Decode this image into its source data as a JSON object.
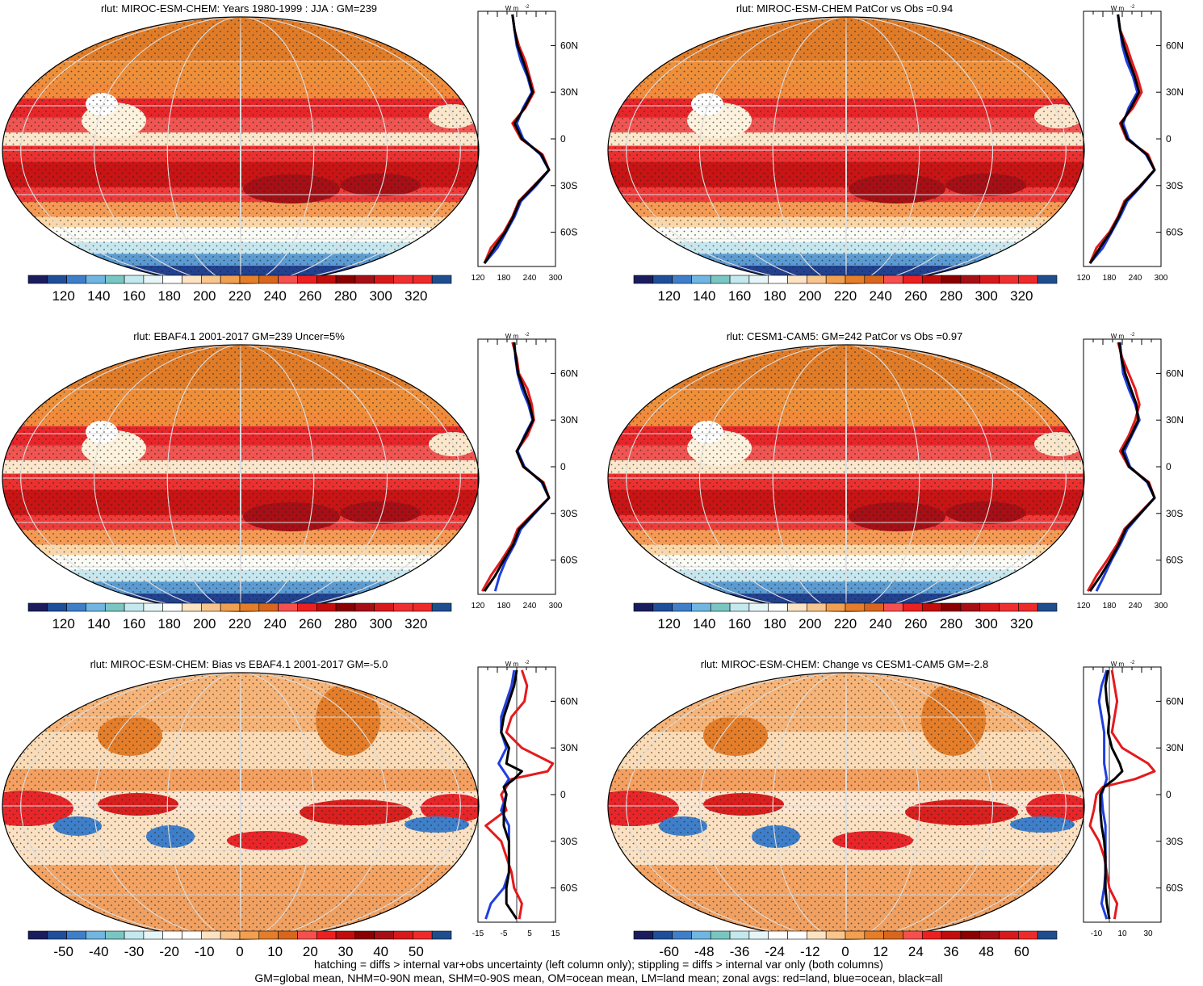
{
  "footer": {
    "line1": "hatching = diffs > internal var+obs uncertainty (left column only); stippling = diffs > internal var only (both columns)",
    "line2": "GM=global mean, NHM=0-90N mean, SHM=0-90S mean, OM=ocean mean, LM=land mean; zonal avgs: red=land, blue=ocean, black=all"
  },
  "profile_unit": "W m",
  "profile_unit_exp": "-2",
  "lat_labels": [
    "60N",
    "30N",
    "0",
    "30S",
    "60S"
  ],
  "chart_data": [
    {
      "type": "heatmap",
      "title": "rlut: MIROC-ESM-CHEM: Years 1980-1999 : JJA : GM=239",
      "colorbar_ticks": [
        "120",
        "140",
        "160",
        "180",
        "200",
        "220",
        "240",
        "260",
        "280",
        "300",
        "320"
      ],
      "colorbar_colors": [
        "#1b1c5e",
        "#1f4e9a",
        "#3f7fc9",
        "#71b6e3",
        "#79c6c2",
        "#c3e8ee",
        "#e6f5f7",
        "#ffffff",
        "#fbe3c4",
        "#f7c58e",
        "#f0a050",
        "#e47e2a",
        "#d9661e",
        "#f5504f",
        "#ec2020",
        "#c20d0d",
        "#8b0000",
        "#a50f15",
        "#d7191c",
        "#f03030",
        "#ef2a2a",
        "#1f4e8f"
      ],
      "profile": {
        "xticks": [
          "120",
          "180",
          "240",
          "300"
        ],
        "xlim": [
          120,
          300
        ],
        "lat": [
          80,
          70,
          60,
          50,
          40,
          30,
          20,
          10,
          0,
          -10,
          -20,
          -30,
          -40,
          -50,
          -60,
          -70,
          -80
        ],
        "land": [
          200,
          205,
          215,
          230,
          240,
          250,
          230,
          200,
          220,
          270,
          285,
          250,
          215,
          200,
          180,
          150,
          135
        ],
        "ocean": [
          200,
          205,
          210,
          220,
          235,
          245,
          225,
          210,
          225,
          265,
          285,
          255,
          220,
          205,
          185,
          165,
          135
        ],
        "all": [
          200,
          205,
          212,
          225,
          237,
          247,
          228,
          205,
          222,
          267,
          285,
          252,
          217,
          202,
          183,
          158,
          135
        ]
      }
    },
    {
      "type": "heatmap",
      "title": "rlut: MIROC-ESM-CHEM PatCor vs Obs =0.94",
      "colorbar_ticks": [
        "120",
        "140",
        "160",
        "180",
        "200",
        "220",
        "240",
        "260",
        "280",
        "300",
        "320"
      ],
      "colorbar_colors": [
        "#1b1c5e",
        "#1f4e9a",
        "#3f7fc9",
        "#71b6e3",
        "#79c6c2",
        "#c3e8ee",
        "#e6f5f7",
        "#ffffff",
        "#fbe3c4",
        "#f7c58e",
        "#f0a050",
        "#e47e2a",
        "#d9661e",
        "#f5504f",
        "#ec2020",
        "#c20d0d",
        "#8b0000",
        "#a50f15",
        "#d7191c",
        "#f03030",
        "#ef2a2a",
        "#1f4e8f"
      ],
      "profile": {
        "xticks": [
          "120",
          "180",
          "240",
          "300"
        ],
        "xlim": [
          120,
          300
        ],
        "lat": [
          80,
          70,
          60,
          50,
          40,
          30,
          20,
          10,
          0,
          -10,
          -20,
          -30,
          -40,
          -50,
          -60,
          -70,
          -80
        ],
        "land": [
          200,
          205,
          220,
          232,
          245,
          255,
          235,
          205,
          220,
          270,
          285,
          252,
          215,
          200,
          180,
          150,
          135
        ],
        "ocean": [
          200,
          205,
          210,
          220,
          235,
          245,
          225,
          212,
          225,
          265,
          285,
          255,
          222,
          205,
          185,
          165,
          135
        ],
        "all": [
          200,
          205,
          214,
          226,
          239,
          249,
          230,
          208,
          222,
          267,
          285,
          253,
          218,
          202,
          183,
          158,
          135
        ]
      }
    },
    {
      "type": "heatmap",
      "title": "rlut: EBAF4.1 2001-2017 GM=239 Uncer=5%",
      "colorbar_ticks": [
        "120",
        "140",
        "160",
        "180",
        "200",
        "220",
        "240",
        "260",
        "280",
        "300",
        "320"
      ],
      "colorbar_colors": [
        "#1b1c5e",
        "#1f4e9a",
        "#3f7fc9",
        "#71b6e3",
        "#79c6c2",
        "#c3e8ee",
        "#e6f5f7",
        "#ffffff",
        "#fbe3c4",
        "#f7c58e",
        "#f0a050",
        "#e47e2a",
        "#d9661e",
        "#f5504f",
        "#ec2020",
        "#c20d0d",
        "#8b0000",
        "#a50f15",
        "#d7191c",
        "#f03030",
        "#ef2a2a",
        "#1f4e8f"
      ],
      "profile": {
        "xticks": [
          "120",
          "180",
          "240",
          "300"
        ],
        "xlim": [
          120,
          300
        ],
        "lat": [
          80,
          70,
          60,
          50,
          40,
          30,
          20,
          10,
          0,
          -10,
          -20,
          -30,
          -40,
          -50,
          -60,
          -70,
          -80
        ],
        "land": [
          200,
          210,
          215,
          235,
          245,
          250,
          235,
          210,
          225,
          272,
          285,
          248,
          212,
          198,
          175,
          150,
          130
        ],
        "ocean": [
          205,
          207,
          212,
          222,
          237,
          247,
          228,
          212,
          228,
          268,
          285,
          252,
          220,
          205,
          185,
          170,
          160
        ],
        "all": [
          203,
          208,
          213,
          227,
          240,
          248,
          230,
          210,
          226,
          270,
          285,
          250,
          216,
          202,
          180,
          160,
          135
        ]
      }
    },
    {
      "type": "heatmap",
      "title": "rlut: CESM1-CAM5: GM=242 PatCor vs Obs =0.97",
      "colorbar_ticks": [
        "120",
        "140",
        "160",
        "180",
        "200",
        "220",
        "240",
        "260",
        "280",
        "300",
        "320"
      ],
      "colorbar_colors": [
        "#1b1c5e",
        "#1f4e9a",
        "#3f7fc9",
        "#71b6e3",
        "#79c6c2",
        "#c3e8ee",
        "#e6f5f7",
        "#ffffff",
        "#fbe3c4",
        "#f7c58e",
        "#f0a050",
        "#e47e2a",
        "#d9661e",
        "#f5504f",
        "#ec2020",
        "#c20d0d",
        "#8b0000",
        "#a50f15",
        "#d7191c",
        "#f03030",
        "#ef2a2a",
        "#1f4e8f"
      ],
      "profile": {
        "xticks": [
          "120",
          "180",
          "240",
          "300"
        ],
        "xlim": [
          120,
          300
        ],
        "lat": [
          80,
          70,
          60,
          50,
          40,
          30,
          20,
          10,
          0,
          -10,
          -20,
          -30,
          -40,
          -50,
          -60,
          -70,
          -80
        ],
        "land": [
          200,
          210,
          225,
          240,
          250,
          240,
          225,
          205,
          225,
          272,
          285,
          250,
          215,
          198,
          175,
          150,
          130
        ],
        "ocean": [
          205,
          208,
          212,
          225,
          240,
          250,
          232,
          215,
          228,
          268,
          285,
          253,
          222,
          205,
          185,
          168,
          150
        ],
        "all": [
          203,
          208,
          217,
          230,
          243,
          247,
          230,
          210,
          226,
          270,
          285,
          252,
          218,
          202,
          182,
          160,
          135
        ]
      }
    },
    {
      "type": "heatmap",
      "title": "rlut: MIROC-ESM-CHEM: Bias vs EBAF4.1 2001-2017 GM=-5.0",
      "colorbar_ticks": [
        "-50",
        "-40",
        "-30",
        "-20",
        "-10",
        "0",
        "10",
        "20",
        "30",
        "40",
        "50"
      ],
      "colorbar_colors": [
        "#1b1c5e",
        "#1f4e9a",
        "#3f7fc9",
        "#71b6e3",
        "#79c6c2",
        "#c3e8ee",
        "#e6f5f7",
        "#ffffff",
        "#ffffff",
        "#fbe3c4",
        "#f7c58e",
        "#f0a050",
        "#e47e2a",
        "#d9661e",
        "#f5504f",
        "#ec2020",
        "#c20d0d",
        "#8b0000",
        "#a50f15",
        "#d7191c",
        "#ef2a2a",
        "#1f4e8f"
      ],
      "profile": {
        "xticks": [
          "-15",
          "-5",
          "5",
          "15"
        ],
        "xlim": [
          -15,
          15
        ],
        "zero_line": true,
        "lat": [
          80,
          70,
          60,
          50,
          40,
          30,
          20,
          15,
          10,
          5,
          0,
          -10,
          -20,
          -30,
          -40,
          -50,
          -60,
          -70,
          -80
        ],
        "land": [
          2,
          4,
          3,
          -2,
          -4,
          2,
          14,
          12,
          -2,
          -4,
          -6,
          -4,
          -12,
          -6,
          -4,
          -2,
          -1,
          2,
          1
        ],
        "ocean": [
          -1,
          -2,
          -4,
          -6,
          -6,
          -4,
          -7,
          -5,
          -3,
          -5,
          -4,
          -6,
          -3,
          -3,
          -3,
          -3,
          -5,
          -10,
          -12
        ],
        "all": [
          0,
          -1,
          -3,
          -5,
          -6,
          -3,
          -4,
          2,
          -1,
          -5,
          -4,
          -5,
          -5,
          -3,
          -3,
          -3,
          -4,
          -4,
          0
        ]
      }
    },
    {
      "type": "heatmap",
      "title": "rlut: MIROC-ESM-CHEM: Change vs CESM1-CAM5 GM=-2.8",
      "colorbar_ticks": [
        "-60",
        "-48",
        "-36",
        "-24",
        "-12",
        "0",
        "12",
        "24",
        "36",
        "48",
        "60"
      ],
      "colorbar_colors": [
        "#1b1c5e",
        "#1f4e9a",
        "#3f7fc9",
        "#71b6e3",
        "#79c6c2",
        "#c3e8ee",
        "#e6f5f7",
        "#ffffff",
        "#ffffff",
        "#fbe3c4",
        "#f7c58e",
        "#f0a050",
        "#e47e2a",
        "#d9661e",
        "#f5504f",
        "#ec2020",
        "#c20d0d",
        "#8b0000",
        "#a50f15",
        "#d7191c",
        "#ef2a2a",
        "#1f4e8f"
      ],
      "profile": {
        "xticks": [
          "-10",
          "10",
          "30"
        ],
        "xlim": [
          -20,
          40
        ],
        "zero_line": true,
        "lat": [
          80,
          70,
          60,
          50,
          40,
          30,
          20,
          15,
          10,
          5,
          0,
          -10,
          -20,
          -30,
          -40,
          -50,
          -60,
          -70,
          -80
        ],
        "land": [
          2,
          4,
          6,
          4,
          2,
          10,
          30,
          35,
          20,
          -5,
          -10,
          -12,
          -15,
          -8,
          -4,
          -2,
          0,
          6,
          4
        ],
        "ocean": [
          -2,
          -6,
          -8,
          -6,
          -4,
          -4,
          -4,
          -3,
          -2,
          -4,
          -6,
          -5,
          -3,
          -3,
          -3,
          -3,
          -4,
          -6,
          -2
        ],
        "all": [
          -1,
          -3,
          -2,
          0,
          -1,
          2,
          8,
          10,
          4,
          -4,
          -7,
          -7,
          -6,
          -4,
          -3,
          -3,
          -3,
          -2,
          0
        ]
      }
    }
  ]
}
